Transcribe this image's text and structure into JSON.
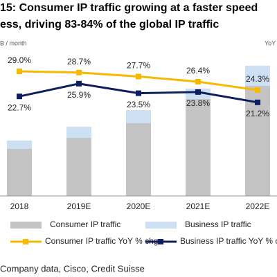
{
  "chart_data": {
    "type": "bar",
    "title": [
      "15: Consumer IP traffic growing at a faster speed",
      "ess, driving 83-84% of the global IP traffic"
    ],
    "y_label": "B / month",
    "y2_label": "YoY",
    "source": "Company data, Cisco, Credit Suisse",
    "categories": [
      "2018",
      "2019E",
      "2020E",
      "2021E",
      "2022E"
    ],
    "ylim": [
      0,
      400
    ],
    "y2lim": [
      0,
      35
    ],
    "stacked": true,
    "series": [
      {
        "name": "Consumer IP traffic",
        "type": "bar",
        "color": "#c4c4c4",
        "values": [
          136,
          168,
          210,
          280,
          318
        ]
      },
      {
        "name": "Business IP traffic",
        "type": "bar",
        "color": "#cde0f3",
        "values": [
          24,
          32,
          38,
          30,
          58
        ]
      },
      {
        "name": "Consumer IP traffic YoY % chg",
        "type": "line",
        "axis": "y2",
        "color": "#f7b900",
        "values": [
          29.0,
          28.7,
          27.7,
          26.4,
          24.3
        ],
        "value_labels": [
          "29.0%",
          "28.7%",
          "27.7%",
          "26.4%",
          "24.3%"
        ]
      },
      {
        "name": "Business IP traffic YoY % chg",
        "type": "line",
        "axis": "y2",
        "color": "#0d1f5e",
        "values": [
          22.7,
          25.9,
          23.5,
          23.8,
          21.2
        ],
        "value_labels": [
          "22.7%",
          "25.9%",
          "23.5%",
          "23.8%",
          "21.2%"
        ]
      }
    ]
  }
}
